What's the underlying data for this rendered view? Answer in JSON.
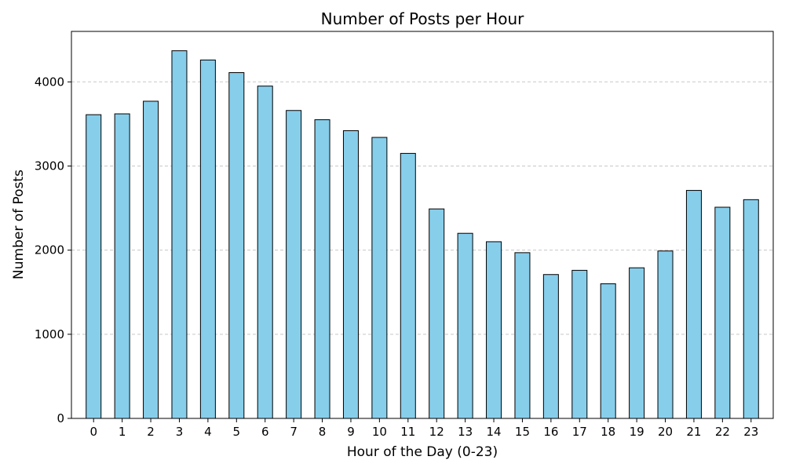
{
  "chart_data": {
    "type": "bar",
    "title": "Number of Posts per Hour",
    "xlabel": "Hour of the Day (0-23)",
    "ylabel": "Number of Posts",
    "categories": [
      "0",
      "1",
      "2",
      "3",
      "4",
      "5",
      "6",
      "7",
      "8",
      "9",
      "10",
      "11",
      "12",
      "13",
      "14",
      "15",
      "16",
      "17",
      "18",
      "19",
      "20",
      "21",
      "22",
      "23"
    ],
    "values": [
      3610,
      3620,
      3770,
      4370,
      4260,
      4110,
      3950,
      3660,
      3550,
      3420,
      3340,
      3150,
      2490,
      2200,
      2100,
      1970,
      1710,
      1760,
      1600,
      1790,
      1990,
      2710,
      2510,
      2600
    ],
    "ylim": [
      0,
      4600
    ],
    "yticks": [
      0,
      1000,
      2000,
      3000,
      4000
    ],
    "grid": "y-dashed",
    "bar_color": "#87CEEB",
    "bar_edge_color": "#000000",
    "grid_color": "#c8c8c8"
  }
}
